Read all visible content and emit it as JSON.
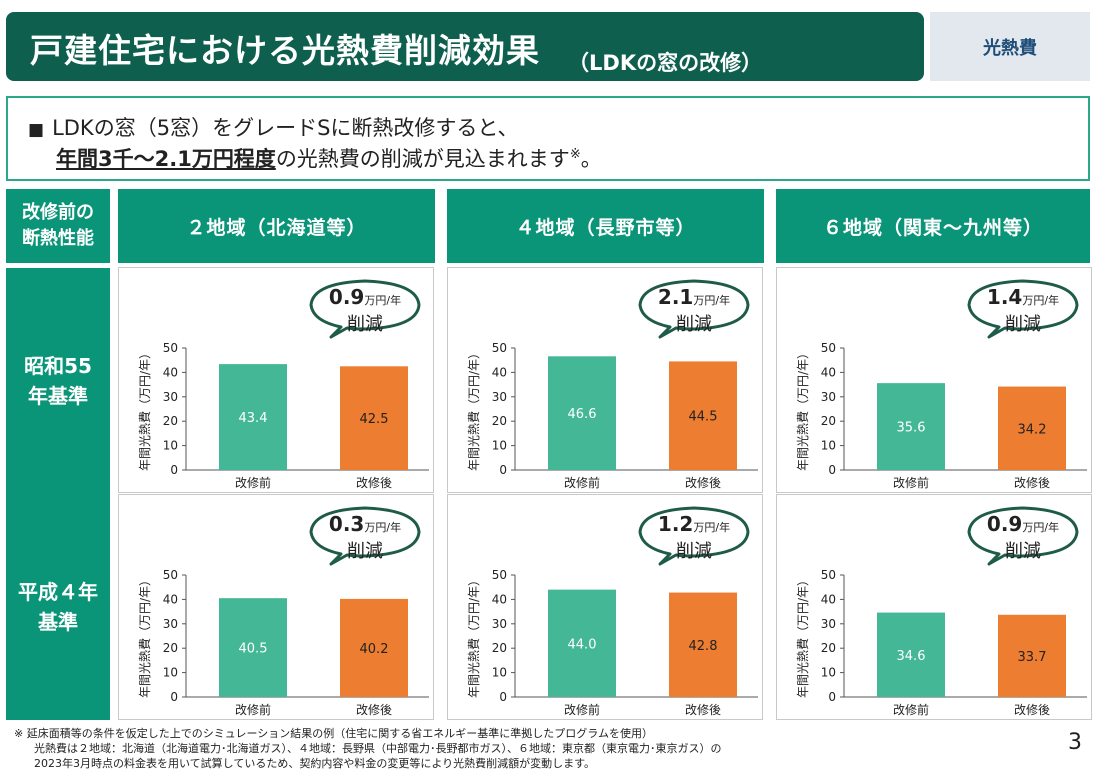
{
  "header": {
    "title": "戸建住宅における光熱費削減効果",
    "subtitle": "（LDKの窓の改修）",
    "tag": "光熱費"
  },
  "summary": {
    "line1": "LDKの窓（5窓）をグレードSに断熱改修すると、",
    "line2_emphasis": "年間3千～2.1万円程度",
    "line2_rest": "の光熱費の削減が見込まれます",
    "note_mark": "※",
    "line2_end": "。"
  },
  "table": {
    "corner_label": "改修前の断熱性能",
    "columns": [
      "２地域（北海道等）",
      "４地域（長野市等）",
      "６地域（関東～九州等）"
    ],
    "rows": [
      "昭和55年基準",
      "平成４年基準"
    ]
  },
  "chart_common": {
    "ylabel": "年間光熱費（万円/年）",
    "categories": [
      "改修前",
      "改修後"
    ],
    "ylim": [
      0,
      50
    ],
    "yticks": [
      0,
      10,
      20,
      30,
      40,
      50
    ],
    "reduction_unit": "万円/年",
    "reduction_label": "削減",
    "colors": {
      "before": "#44b896",
      "after": "#ed7d31",
      "bubble_border": "#1f5b49"
    }
  },
  "chart_data": [
    {
      "type": "bar",
      "row": "昭和55年基準",
      "column": "２地域（北海道等）",
      "categories": [
        "改修前",
        "改修後"
      ],
      "values": [
        43.4,
        42.5
      ],
      "reduction": "0.9",
      "ylabel": "年間光熱費（万円/年）",
      "ylim": [
        0,
        50
      ]
    },
    {
      "type": "bar",
      "row": "昭和55年基準",
      "column": "４地域（長野市等）",
      "categories": [
        "改修前",
        "改修後"
      ],
      "values": [
        46.6,
        44.5
      ],
      "reduction": "2.1",
      "ylabel": "年間光熱費（万円/年）",
      "ylim": [
        0,
        50
      ]
    },
    {
      "type": "bar",
      "row": "昭和55年基準",
      "column": "６地域（関東～九州等）",
      "categories": [
        "改修前",
        "改修後"
      ],
      "values": [
        35.6,
        34.2
      ],
      "reduction": "1.4",
      "ylabel": "年間光熱費（万円/年）",
      "ylim": [
        0,
        50
      ]
    },
    {
      "type": "bar",
      "row": "平成４年基準",
      "column": "２地域（北海道等）",
      "categories": [
        "改修前",
        "改修後"
      ],
      "values": [
        40.5,
        40.2
      ],
      "reduction": "0.3",
      "ylabel": "年間光熱費（万円/年）",
      "ylim": [
        0,
        50
      ]
    },
    {
      "type": "bar",
      "row": "平成４年基準",
      "column": "４地域（長野市等）",
      "categories": [
        "改修前",
        "改修後"
      ],
      "values": [
        44.0,
        42.8
      ],
      "reduction": "1.2",
      "ylabel": "年間光熱費（万円/年）",
      "ylim": [
        0,
        50
      ]
    },
    {
      "type": "bar",
      "row": "平成４年基準",
      "column": "６地域（関東～九州等）",
      "categories": [
        "改修前",
        "改修後"
      ],
      "values": [
        34.6,
        33.7
      ],
      "reduction": "0.9",
      "ylabel": "年間光熱費（万円/年）",
      "ylim": [
        0,
        50
      ]
    }
  ],
  "footnote": {
    "line1": "※ 延床面積等の条件を仮定した上でのシミュレーション結果の例（住宅に関する省エネルギー基準に準拠したプログラムを使用）",
    "line2": "光熱費は２地域：北海道（北海道電力･北海道ガス）、４地域：長野県（中部電力･長野都市ガス）、６地域：東京都（東京電力･東京ガス）の",
    "line3": "2023年3月時点の料金表を用いて試算しているため、契約内容や料金の変更等により光熱費削減額が変動します。"
  },
  "page_number": "3"
}
